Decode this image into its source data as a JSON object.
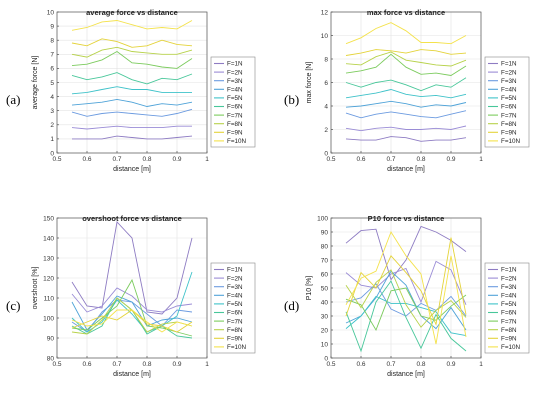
{
  "figure": {
    "panel_letters": [
      "(a)",
      "(b)",
      "(c)",
      "(d)"
    ]
  },
  "legend_entries": [
    "F=1N",
    "F=2N",
    "F=3N",
    "F=4N",
    "F=5N",
    "F=6N",
    "F=7N",
    "F=8N",
    "F=9N",
    "F=10N"
  ],
  "series_colors": [
    "#8E7CC3",
    "#9A8CD6",
    "#6C9BE0",
    "#4FA3D8",
    "#3FC2C9",
    "#48C79A",
    "#7CCB5E",
    "#B7D24A",
    "#E4D33A",
    "#F4E24C"
  ],
  "chart_data": [
    {
      "type": "line",
      "title": "average force vs distance",
      "xlabel": "distance [m]",
      "ylabel": "average force [N]",
      "xlim": [
        0.5,
        1
      ],
      "ylim": [
        0,
        10
      ],
      "xticks": [
        "0.5",
        "0.6",
        "0.7",
        "0.8",
        "0.9",
        "1"
      ],
      "yticks": [
        "0",
        "1",
        "2",
        "3",
        "4",
        "5",
        "6",
        "7",
        "8",
        "9",
        "10"
      ],
      "grid": true,
      "legend_position": "right",
      "x": [
        0.55,
        0.6,
        0.65,
        0.7,
        0.75,
        0.8,
        0.85,
        0.9,
        0.95
      ],
      "series": [
        {
          "name": "F=1N",
          "values": [
            1.0,
            1.0,
            1.0,
            1.2,
            1.1,
            1.0,
            1.0,
            1.1,
            1.2
          ]
        },
        {
          "name": "F=2N",
          "values": [
            1.8,
            1.7,
            1.8,
            1.9,
            1.8,
            1.8,
            1.8,
            1.9,
            1.9
          ]
        },
        {
          "name": "F=3N",
          "values": [
            2.9,
            2.6,
            2.8,
            2.9,
            2.8,
            2.7,
            2.6,
            2.8,
            3.1
          ]
        },
        {
          "name": "F=4N",
          "values": [
            3.4,
            3.5,
            3.6,
            3.8,
            3.6,
            3.3,
            3.5,
            3.4,
            3.6
          ]
        },
        {
          "name": "F=5N",
          "values": [
            4.2,
            4.3,
            4.5,
            4.7,
            4.5,
            4.5,
            4.3,
            4.3,
            4.3
          ]
        },
        {
          "name": "F=6N",
          "values": [
            5.5,
            5.2,
            5.4,
            5.7,
            5.2,
            4.9,
            5.3,
            5.2,
            5.6
          ]
        },
        {
          "name": "F=7N",
          "values": [
            6.2,
            6.3,
            6.6,
            7.2,
            6.4,
            6.3,
            6.1,
            6.0,
            6.7
          ]
        },
        {
          "name": "F=8N",
          "values": [
            7.0,
            6.8,
            7.3,
            7.5,
            7.2,
            7.1,
            7.0,
            7.0,
            7.3
          ]
        },
        {
          "name": "F=9N",
          "values": [
            7.8,
            7.6,
            8.1,
            7.9,
            7.5,
            7.6,
            8.0,
            7.7,
            7.6
          ]
        },
        {
          "name": "F=10N",
          "values": [
            8.7,
            8.9,
            9.3,
            9.4,
            9.1,
            8.8,
            8.9,
            8.8,
            9.4
          ]
        }
      ]
    },
    {
      "type": "line",
      "title": "max force vs distance",
      "xlabel": "distance [m]",
      "ylabel": "max force [N]",
      "xlim": [
        0.5,
        1
      ],
      "ylim": [
        0,
        12
      ],
      "xticks": [
        "0.5",
        "0.6",
        "0.7",
        "0.8",
        "0.9",
        "1"
      ],
      "yticks": [
        "0",
        "2",
        "4",
        "6",
        "8",
        "10",
        "12"
      ],
      "grid": true,
      "legend_position": "right",
      "x": [
        0.55,
        0.6,
        0.65,
        0.7,
        0.75,
        0.8,
        0.85,
        0.9,
        0.95
      ],
      "series": [
        {
          "name": "F=1N",
          "values": [
            1.2,
            1.1,
            1.1,
            1.4,
            1.3,
            1.0,
            1.1,
            1.1,
            1.3
          ]
        },
        {
          "name": "F=2N",
          "values": [
            2.1,
            1.9,
            2.1,
            2.2,
            2.0,
            2.0,
            2.1,
            2.0,
            2.3
          ]
        },
        {
          "name": "F=3N",
          "values": [
            3.4,
            3.0,
            3.3,
            3.5,
            3.3,
            3.1,
            3.0,
            3.3,
            3.6
          ]
        },
        {
          "name": "F=4N",
          "values": [
            3.9,
            4.0,
            4.2,
            4.4,
            4.2,
            3.9,
            4.1,
            4.0,
            4.3
          ]
        },
        {
          "name": "F=5N",
          "values": [
            4.7,
            4.9,
            5.1,
            5.4,
            5.0,
            4.8,
            4.9,
            4.7,
            5.0
          ]
        },
        {
          "name": "F=6N",
          "values": [
            6.0,
            5.6,
            6.0,
            6.2,
            5.8,
            5.3,
            5.8,
            5.6,
            6.4
          ]
        },
        {
          "name": "F=7N",
          "values": [
            6.8,
            7.0,
            7.3,
            8.4,
            7.3,
            6.7,
            6.8,
            6.6,
            7.4
          ]
        },
        {
          "name": "F=8N",
          "values": [
            7.6,
            7.5,
            8.2,
            8.6,
            7.9,
            7.7,
            7.5,
            7.4,
            7.9
          ]
        },
        {
          "name": "F=9N",
          "values": [
            8.3,
            8.5,
            8.8,
            8.7,
            8.5,
            8.8,
            8.7,
            8.4,
            8.5
          ]
        },
        {
          "name": "F=10N",
          "values": [
            9.3,
            9.8,
            10.6,
            11.1,
            10.4,
            9.4,
            9.4,
            9.3,
            10.0
          ]
        }
      ]
    },
    {
      "type": "line",
      "title": "overshoot force vs distance",
      "xlabel": "distance [m]",
      "ylabel": "overshoot [%]",
      "xlim": [
        0.5,
        1
      ],
      "ylim": [
        80,
        150
      ],
      "xticks": [
        "0.5",
        "0.6",
        "0.7",
        "0.8",
        "0.9",
        "1"
      ],
      "yticks": [
        "80",
        "90",
        "100",
        "110",
        "120",
        "130",
        "140",
        "150"
      ],
      "grid": true,
      "legend_position": "right",
      "x": [
        0.55,
        0.6,
        0.65,
        0.7,
        0.75,
        0.8,
        0.85,
        0.9,
        0.95
      ],
      "series": [
        {
          "name": "F=1N",
          "values": [
            118,
            106,
            105,
            148,
            140,
            103,
            102,
            110,
            140
          ]
        },
        {
          "name": "F=2N",
          "values": [
            112,
            103,
            106,
            115,
            111,
            104,
            103,
            106,
            107
          ]
        },
        {
          "name": "F=3N",
          "values": [
            98,
            93,
            103,
            109,
            108,
            102,
            96,
            104,
            103
          ]
        },
        {
          "name": "F=4N",
          "values": [
            108,
            94,
            102,
            111,
            108,
            96,
            99,
            100,
            98
          ]
        },
        {
          "name": "F=5N",
          "values": [
            100,
            93,
            98,
            109,
            102,
            93,
            96,
            101,
            123
          ]
        },
        {
          "name": "F=6N",
          "values": [
            96,
            92,
            96,
            110,
            104,
            92,
            96,
            91,
            90
          ]
        },
        {
          "name": "F=7N",
          "values": [
            95,
            94,
            100,
            106,
            119,
            96,
            95,
            93,
            91
          ]
        },
        {
          "name": "F=8N",
          "values": [
            93,
            92,
            99,
            110,
            104,
            93,
            97,
            98,
            96
          ]
        },
        {
          "name": "F=9N",
          "values": [
            95,
            98,
            101,
            99,
            104,
            97,
            96,
            93,
            98
          ]
        },
        {
          "name": "F=10N",
          "values": [
            99,
            96,
            97,
            104,
            104,
            98,
            93,
            98,
            96
          ]
        }
      ]
    },
    {
      "type": "line",
      "title": "P10 force vs distance",
      "xlabel": "distance [m]",
      "ylabel": "P10 [%]",
      "xlim": [
        0.5,
        1
      ],
      "ylim": [
        0,
        100
      ],
      "xticks": [
        "0.5",
        "0.6",
        "0.7",
        "0.8",
        "0.9",
        "1"
      ],
      "yticks": [
        "0",
        "10",
        "20",
        "30",
        "40",
        "50",
        "60",
        "70",
        "80",
        "90",
        "100"
      ],
      "grid": true,
      "legend_position": "right",
      "x": [
        0.55,
        0.6,
        0.65,
        0.7,
        0.75,
        0.8,
        0.85,
        0.9,
        0.95
      ],
      "series": [
        {
          "name": "F=1N",
          "values": [
            82,
            91,
            92,
            56,
            70,
            94,
            90,
            84,
            76
          ]
        },
        {
          "name": "F=2N",
          "values": [
            61,
            52,
            50,
            60,
            64,
            40,
            69,
            63,
            38
          ]
        },
        {
          "name": "F=3N",
          "values": [
            40,
            43,
            53,
            35,
            30,
            39,
            34,
            44,
            30
          ]
        },
        {
          "name": "F=4N",
          "values": [
            25,
            30,
            43,
            62,
            52,
            30,
            21,
            36,
            20
          ]
        },
        {
          "name": "F=5N",
          "values": [
            21,
            30,
            44,
            39,
            39,
            36,
            33,
            18,
            16
          ]
        },
        {
          "name": "F=6N",
          "values": [
            33,
            5,
            40,
            55,
            29,
            7,
            31,
            14,
            5
          ]
        },
        {
          "name": "F=7N",
          "values": [
            42,
            38,
            20,
            48,
            50,
            30,
            27,
            37,
            45
          ]
        },
        {
          "name": "F=8N",
          "values": [
            52,
            36,
            54,
            63,
            38,
            22,
            34,
            41,
            29
          ]
        },
        {
          "name": "F=9N",
          "values": [
            30,
            61,
            50,
            73,
            61,
            48,
            24,
            86,
            31
          ]
        },
        {
          "name": "F=10N",
          "values": [
            38,
            57,
            62,
            90,
            73,
            60,
            10,
            73,
            15
          ]
        }
      ]
    }
  ]
}
